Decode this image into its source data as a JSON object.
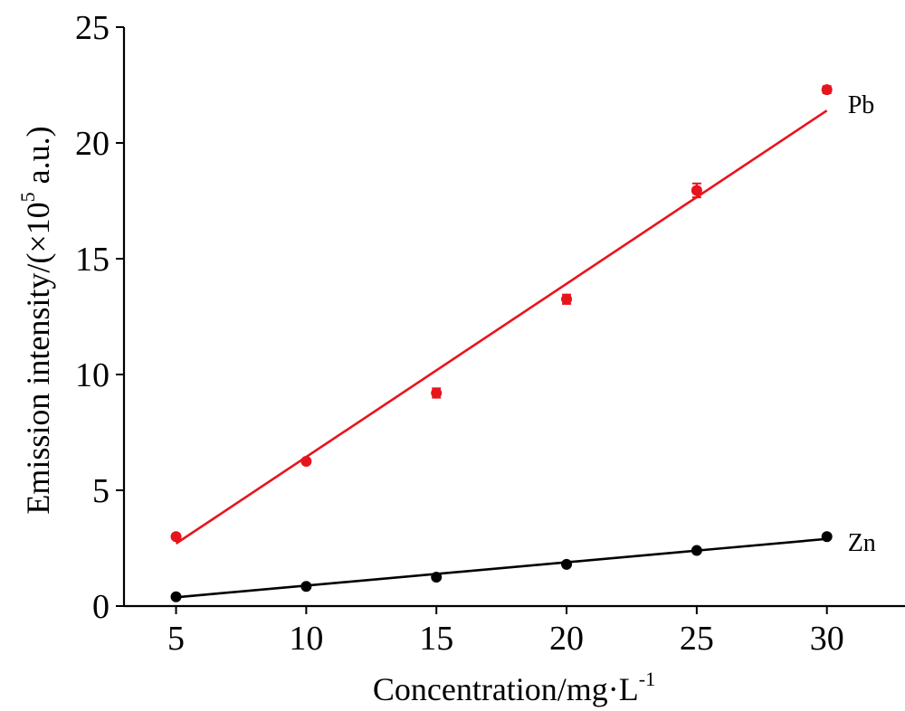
{
  "chart_data": {
    "type": "scatter",
    "xlabel": "Concentration/mg·L",
    "xlabel_sup": "-1",
    "ylabel_prefix": "Emission intensity/(×10",
    "ylabel_sup": "5",
    "ylabel_suffix": " a.u.)",
    "xlim": [
      3,
      33
    ],
    "ylim": [
      0,
      25
    ],
    "x_ticks": [
      5,
      10,
      15,
      20,
      25,
      30
    ],
    "y_ticks": [
      0,
      5,
      10,
      15,
      20,
      25
    ],
    "grid": false,
    "legend": "none",
    "series": [
      {
        "name": "Pb",
        "color": "#e8141c",
        "x": [
          5,
          10,
          15,
          20,
          25,
          30
        ],
        "y": [
          3.0,
          6.25,
          9.2,
          13.25,
          17.95,
          22.3
        ],
        "error": [
          0.1,
          0.1,
          0.2,
          0.2,
          0.3,
          0.15
        ],
        "fit": {
          "x": [
            5,
            30
          ],
          "y": [
            2.7,
            21.4
          ]
        }
      },
      {
        "name": "Zn",
        "color": "#000000",
        "x": [
          5,
          10,
          15,
          20,
          25,
          30
        ],
        "y": [
          0.4,
          0.85,
          1.25,
          1.8,
          2.4,
          3.0
        ],
        "error": [
          0.05,
          0.05,
          0.05,
          0.05,
          0.05,
          0.05
        ],
        "fit": {
          "x": [
            5,
            30
          ],
          "y": [
            0.38,
            2.9
          ]
        }
      }
    ]
  }
}
